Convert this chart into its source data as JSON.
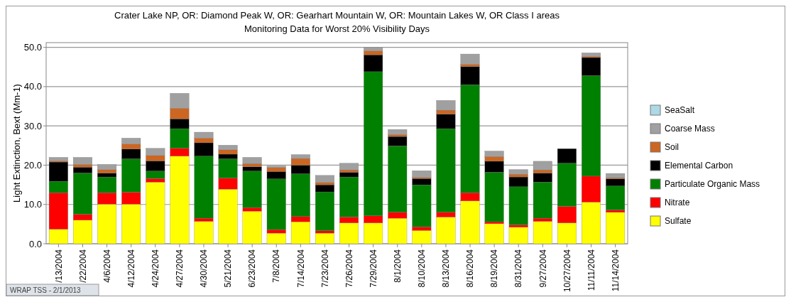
{
  "chart_data": {
    "type": "bar",
    "stacked": true,
    "title": "Crater Lake NP, OR: Diamond Peak W, OR: Gearhart Mountain W, OR: Mountain Lakes W, OR Class I areas",
    "subtitle": "Monitoring Data for Worst 20% Visibility Days",
    "ylabel": "Light Extinction, Bext (Mm-1)",
    "annotations": [
      "WRAP TSS - 2/1/2013"
    ],
    "categories": [
      "/13/2004",
      "/22/2004",
      "4/6/2004",
      "4/12/2004",
      "4/24/2004",
      "4/27/2004",
      "4/30/2004",
      "5/21/2004",
      "6/23/2004",
      "7/8/2004",
      "7/14/2004",
      "7/23/2004",
      "7/26/2004",
      "7/29/2004",
      "8/1/2004",
      "8/10/2004",
      "8/13/2004",
      "8/16/2004",
      "8/19/2004",
      "8/31/2004",
      "9/27/2004",
      "10/27/2004",
      "11/11/2004",
      "11/14/2004"
    ],
    "series": [
      {
        "name": "Sulfate",
        "color": "#ffff00",
        "values": [
          3.7,
          6.0,
          10.1,
          10.1,
          15.7,
          22.3,
          5.7,
          13.9,
          8.3,
          2.7,
          5.6,
          2.7,
          5.3,
          5.3,
          6.5,
          3.4,
          6.8,
          10.9,
          5.1,
          4.2,
          5.7,
          5.3,
          10.6,
          8.0
        ]
      },
      {
        "name": "Nitrate",
        "color": "#ff0000",
        "values": [
          9.3,
          1.5,
          2.9,
          3.0,
          0.9,
          2.0,
          0.8,
          2.8,
          0.9,
          0.9,
          1.3,
          0.6,
          1.5,
          1.8,
          1.5,
          0.9,
          1.2,
          2.1,
          0.5,
          0.6,
          0.8,
          4.2,
          6.6,
          0.6
        ]
      },
      {
        "name": "Particulate Organic Mass",
        "color": "#008000",
        "values": [
          2.9,
          10.5,
          4.0,
          8.5,
          1.9,
          5.0,
          15.8,
          4.9,
          9.3,
          12.9,
          10.9,
          9.9,
          10.2,
          36.7,
          16.9,
          10.7,
          21.3,
          27.5,
          12.6,
          9.7,
          9.2,
          11.0,
          25.6,
          6.1
        ]
      },
      {
        "name": "Elemental Carbon",
        "color": "#000000",
        "values": [
          4.9,
          1.5,
          1.0,
          2.5,
          2.6,
          2.5,
          3.4,
          1.2,
          1.1,
          1.9,
          2.2,
          1.8,
          1.2,
          4.3,
          2.4,
          1.6,
          3.7,
          4.6,
          2.8,
          2.5,
          2.3,
          3.7,
          4.6,
          1.8
        ]
      },
      {
        "name": "Soil",
        "color": "#cc6622",
        "values": [
          0.3,
          0.7,
          0.9,
          1.3,
          1.4,
          2.7,
          1.2,
          1.1,
          0.8,
          1.0,
          1.7,
          0.6,
          0.6,
          1.0,
          0.5,
          0.3,
          1.0,
          0.6,
          1.2,
          0.7,
          0.8,
          0,
          0.3,
          0.3
        ]
      },
      {
        "name": "Coarse Mass",
        "color": "#a0a0a0",
        "values": [
          0.9,
          1.8,
          1.3,
          1.5,
          1.8,
          3.8,
          1.5,
          1.2,
          1.6,
          0.4,
          1.0,
          1.8,
          1.7,
          0.9,
          1.3,
          1.7,
          2.5,
          2.6,
          1.4,
          1.2,
          2.2,
          0,
          0.9,
          1.1
        ]
      },
      {
        "name": "SeaSalt",
        "color": "#add8e6",
        "values": [
          0,
          0,
          0,
          0,
          0,
          0,
          0,
          0,
          0,
          0,
          0,
          0,
          0,
          0,
          0,
          0,
          0,
          0,
          0,
          0,
          0,
          0,
          0,
          0
        ]
      }
    ],
    "ylim": [
      0,
      51.2
    ],
    "yticks": [
      {
        "value": 0,
        "label": "0.0"
      },
      {
        "value": 10,
        "label": "10.0"
      },
      {
        "value": 20,
        "label": "20.0"
      },
      {
        "value": 30,
        "label": "30.0"
      },
      {
        "value": 40,
        "label": "40.0"
      },
      {
        "value": 50,
        "label": "50.0"
      }
    ],
    "grid": "y",
    "legend": "right"
  }
}
